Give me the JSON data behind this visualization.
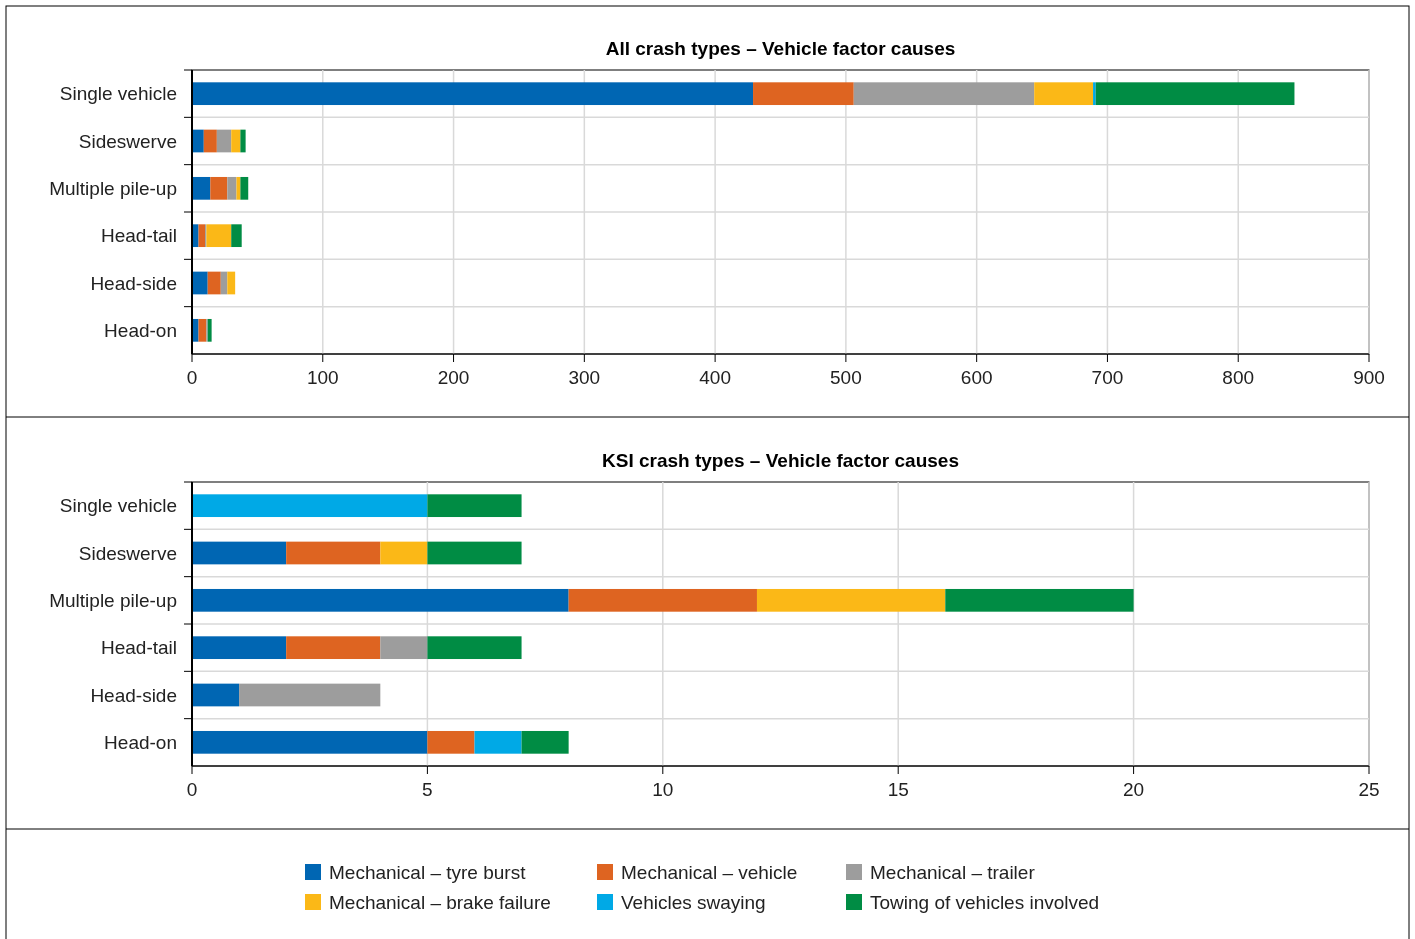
{
  "chart_data": [
    {
      "type": "bar",
      "orientation": "horizontal",
      "stacked": true,
      "title": "All crash types – Vehicle factor causes",
      "categories": [
        "Single vehicle",
        "Sideswerve",
        "Multiple pile-up",
        "Head-tail",
        "Head-side",
        "Head-on"
      ],
      "xlim": [
        0,
        900
      ],
      "xticks": [
        0,
        100,
        200,
        300,
        400,
        500,
        600,
        700,
        800,
        900
      ],
      "grid": true,
      "legend": false,
      "series": [
        {
          "color": "#0066b3",
          "values": [
            429,
            9,
            14,
            5,
            12,
            5
          ]
        },
        {
          "color": "#de6421",
          "values": [
            77,
            10,
            13,
            5,
            10,
            6
          ]
        },
        {
          "color": "#9d9d9d",
          "values": [
            138,
            11,
            7,
            1,
            5,
            1
          ]
        },
        {
          "color": "#fbb817",
          "values": [
            45,
            7,
            3,
            19,
            6,
            0
          ]
        },
        {
          "color": "#00a9e6",
          "values": [
            2,
            0,
            0,
            0,
            0,
            0
          ]
        },
        {
          "color": "#008c44",
          "values": [
            152,
            4,
            6,
            8,
            0,
            3
          ]
        }
      ]
    },
    {
      "type": "bar",
      "orientation": "horizontal",
      "stacked": true,
      "title": "KSI crash types – Vehicle factor causes",
      "categories": [
        "Single vehicle",
        "Sideswerve",
        "Multiple pile-up",
        "Head-tail",
        "Head-side",
        "Head-on"
      ],
      "xlim": [
        0,
        25
      ],
      "xticks": [
        0,
        5,
        10,
        15,
        20,
        25
      ],
      "grid": true,
      "legend": "bottom",
      "series": [
        {
          "name": "Mechanical – tyre burst",
          "color": "#0066b3",
          "values": [
            0,
            2,
            8,
            2,
            1,
            5
          ]
        },
        {
          "name": "Mechanical – vehicle",
          "color": "#de6421",
          "values": [
            0,
            2,
            4,
            2,
            0,
            1
          ]
        },
        {
          "name": "Mechanical – trailer",
          "color": "#9d9d9d",
          "values": [
            0,
            0,
            0,
            1,
            3,
            0
          ]
        },
        {
          "name": "Mechanical – brake failure",
          "color": "#fbb817",
          "values": [
            0,
            1,
            4,
            0,
            0,
            0
          ]
        },
        {
          "name": "Vehicles swaying",
          "color": "#00a9e6",
          "values": [
            5,
            0,
            0,
            0,
            0,
            1
          ]
        },
        {
          "name": "Towing of vehicles involved",
          "color": "#008c44",
          "values": [
            2,
            2,
            4,
            2,
            0,
            1
          ]
        }
      ]
    }
  ]
}
